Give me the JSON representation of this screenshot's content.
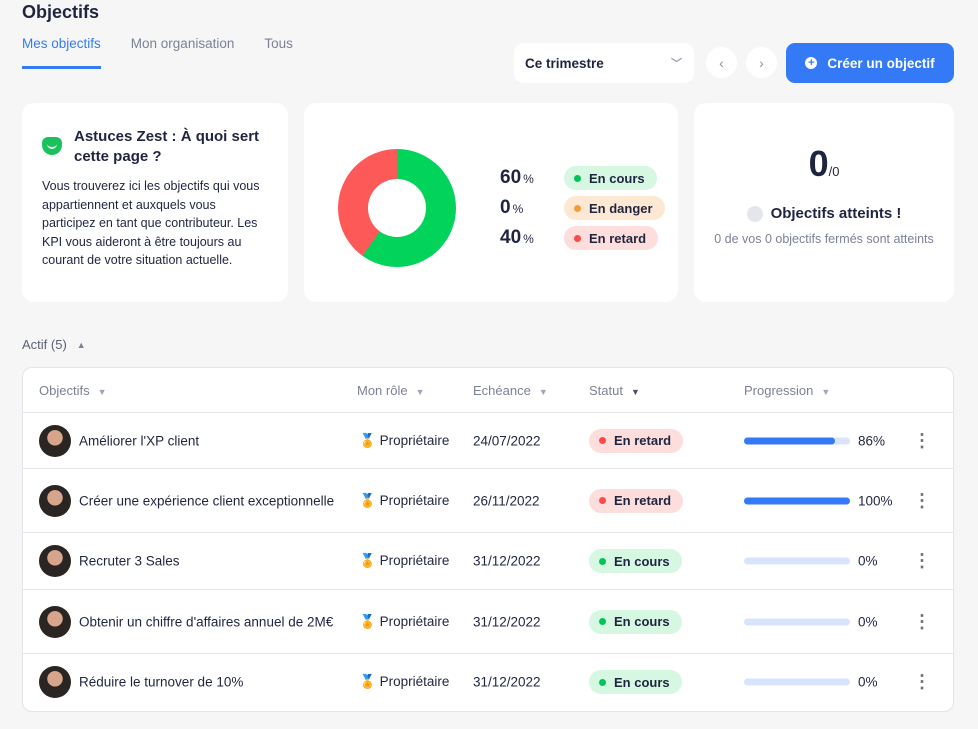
{
  "title": "Objectifs",
  "tabs": [
    "Mes objectifs",
    "Mon organisation",
    "Tous"
  ],
  "period": "Ce trimestre",
  "create_label": "Créer un objectif",
  "tip": {
    "title": "Astuces Zest : À quoi sert cette page ?",
    "text": "Vous trouverez ici les objectifs qui vous appartiennent et auxquels vous participez en tant que contributeur. Les KPI vous aideront à être toujours au courant de votre situation actuelle."
  },
  "kpi": [
    {
      "value": "60",
      "unit": "%",
      "label": "En cours",
      "color": "#02d35b"
    },
    {
      "value": "0",
      "unit": "%",
      "label": "En danger",
      "color": "#fb9a35"
    },
    {
      "value": "40",
      "unit": "%",
      "label": "En retard",
      "color": "#fe5959"
    }
  ],
  "achieved": {
    "count": "0",
    "total": "/0",
    "label": "Objectifs atteints !",
    "sub": "0 de vos 0 objectifs fermés sont atteints"
  },
  "section": "Actif (5)",
  "columns": [
    "Objectifs",
    "Mon rôle",
    "Echéance",
    "Statut",
    "Progression"
  ],
  "rows": [
    {
      "name": "Améliorer l'XP client",
      "role": "Propriétaire",
      "date": "24/07/2022",
      "status": "En retard",
      "progress": 86,
      "progress_label": "86%"
    },
    {
      "name": "Créer une expérience client exceptionnelle",
      "role": "Propriétaire",
      "date": "26/11/2022",
      "status": "En retard",
      "progress": 100,
      "progress_label": "100%"
    },
    {
      "name": "Recruter 3 Sales",
      "role": "Propriétaire",
      "date": "31/12/2022",
      "status": "En cours",
      "progress": 0,
      "progress_label": "0%"
    },
    {
      "name": "Obtenir un chiffre d'affaires annuel de 2M€",
      "role": "Propriétaire",
      "date": "31/12/2022",
      "status": "En cours",
      "progress": 0,
      "progress_label": "0%"
    },
    {
      "name": "Réduire le turnover de 10%",
      "role": "Propriétaire",
      "date": "31/12/2022",
      "status": "En cours",
      "progress": 0,
      "progress_label": "0%"
    }
  ]
}
